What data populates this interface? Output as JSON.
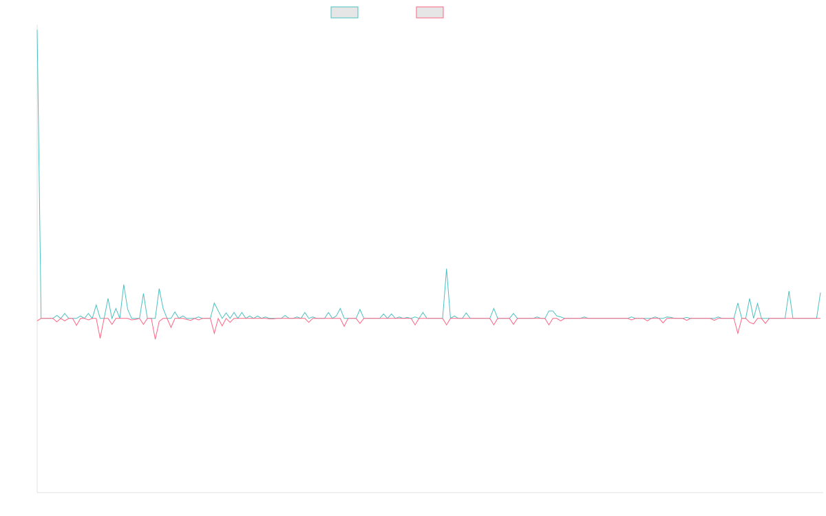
{
  "chart_data": {
    "type": "line",
    "title": "",
    "xlabel": "",
    "ylabel": "",
    "grid": false,
    "legend": {
      "placement": "top-center"
    },
    "x_count": 200,
    "ylim": [
      -35,
      59
    ],
    "series": [
      {
        "color": "#4bc0c0",
        "legend_fill": "#e6e6e6",
        "values": [
          58,
          0,
          0,
          0,
          0,
          0.6,
          0,
          1,
          0,
          0,
          0,
          0.5,
          0,
          1,
          0,
          2.7,
          0,
          0,
          4,
          0,
          2,
          0,
          6.8,
          1.8,
          0,
          0,
          0,
          5,
          0,
          0,
          0,
          6,
          2,
          0,
          0,
          1.3,
          0,
          0.5,
          0,
          0,
          0,
          0.3,
          0,
          0,
          0,
          3.1,
          1.5,
          0,
          1.1,
          0,
          1.2,
          0,
          1.2,
          0,
          0.5,
          0,
          0.5,
          0,
          0.3,
          0,
          0,
          0,
          0,
          0.6,
          0,
          0,
          0.3,
          0,
          1.2,
          0,
          0.3,
          0,
          0,
          0,
          1.2,
          0,
          0.5,
          2,
          0,
          0,
          0,
          0,
          1.8,
          0,
          0,
          0,
          0,
          0,
          0.9,
          0,
          0.9,
          0,
          0.3,
          0,
          0.2,
          0,
          0.3,
          0,
          1.2,
          0,
          0,
          0,
          0,
          0,
          10,
          0,
          0.5,
          0,
          0,
          1.1,
          0,
          0,
          0,
          0,
          0,
          0,
          2,
          0,
          0,
          0,
          0,
          1,
          0,
          0,
          0,
          0,
          0,
          0.3,
          0,
          0,
          1.5,
          1.5,
          0.5,
          0.3,
          0,
          0,
          0,
          0,
          0,
          0.3,
          0,
          0,
          0,
          0,
          0,
          0,
          0,
          0,
          0,
          0,
          0,
          0.3,
          0,
          0,
          0,
          0,
          0,
          0.3,
          0,
          0,
          0.3,
          0.2,
          0,
          0,
          0,
          0.2,
          0,
          0,
          0,
          0,
          0,
          0,
          0,
          0.3,
          0,
          0,
          0,
          0,
          3.1,
          0,
          0,
          4,
          0,
          3,
          0,
          0,
          0,
          0,
          0,
          0,
          0,
          5.5,
          0,
          0,
          0,
          0,
          0,
          0,
          0,
          5.2
        ]
      },
      {
        "color": "#ff6384",
        "legend_fill": "#e6e6e6",
        "values": [
          -0.5,
          0,
          0,
          0,
          0,
          -0.7,
          0,
          -0.5,
          0,
          0,
          -1.4,
          0,
          0,
          -0.3,
          0,
          0,
          -4,
          0,
          0,
          -1.2,
          0,
          0,
          0,
          0,
          -0.3,
          -0.2,
          0,
          -1.2,
          0,
          0,
          -4.2,
          -0.6,
          0,
          0,
          -1.8,
          0,
          0,
          0,
          -0.2,
          -0.4,
          0,
          -0.3,
          0,
          0,
          0,
          -3,
          0,
          -1.5,
          0,
          -0.8,
          0,
          0,
          0,
          0,
          0,
          0,
          0,
          0,
          0,
          -0.1,
          -0.1,
          0,
          0,
          0,
          0,
          0,
          0,
          0,
          0,
          -0.8,
          0,
          0,
          0,
          0,
          0,
          0,
          0,
          0,
          -1.6,
          0,
          0,
          0,
          -1,
          0,
          0,
          0,
          0,
          0,
          0,
          0,
          0,
          0,
          0,
          0,
          0,
          0,
          -1.3,
          0,
          0,
          0,
          0,
          0,
          0,
          0,
          -1.3,
          0,
          0,
          0,
          0,
          0,
          0,
          0,
          0,
          0,
          0,
          0,
          -1.3,
          0,
          0,
          0,
          0,
          -1.2,
          0,
          0,
          0,
          0,
          0,
          0,
          0,
          0,
          -1.3,
          0,
          0,
          -0.5,
          0,
          0,
          0,
          0,
          0,
          0,
          0,
          0,
          0,
          0,
          0,
          0,
          0,
          0,
          0,
          0,
          0,
          -0.3,
          0,
          0,
          0,
          -0.5,
          0,
          0,
          0,
          -0.9,
          0,
          0,
          0,
          0,
          0,
          -0.4,
          0,
          0,
          0,
          0,
          0,
          0,
          -0.4,
          0,
          0,
          0,
          0,
          0,
          -3,
          0,
          0,
          -0.8,
          -1.1,
          0,
          0,
          -1,
          0,
          0,
          0,
          0,
          0,
          0,
          0,
          0,
          0,
          0,
          0,
          0,
          0,
          0
        ]
      }
    ]
  }
}
